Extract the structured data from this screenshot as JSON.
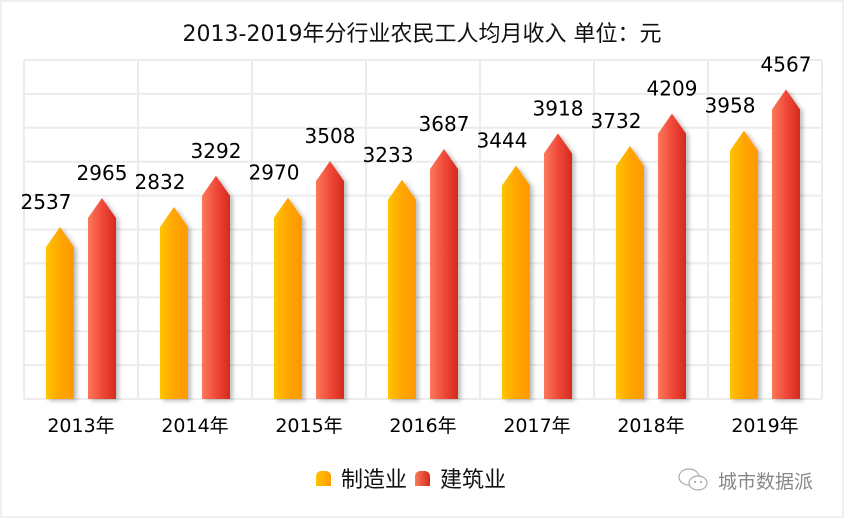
{
  "chart_data": {
    "type": "bar",
    "title": "2013-2019年分行业农民工人均月收入 单位：元",
    "categories": [
      "2013年",
      "2014年",
      "2015年",
      "2016年",
      "2017年",
      "2018年",
      "2019年"
    ],
    "series": [
      {
        "name": "制造业",
        "values": [
          2537,
          2832,
          2970,
          3233,
          3444,
          3732,
          3958
        ],
        "color": "#ffa500"
      },
      {
        "name": "建筑业",
        "values": [
          2965,
          3292,
          3508,
          3687,
          3918,
          4209,
          4567
        ],
        "color": "#e8412f"
      }
    ],
    "ylim": [
      0,
      5000
    ],
    "ytick_step": 500,
    "grid": true,
    "legend": "bottom",
    "data_labels": true
  },
  "watermark": "城市数据派"
}
